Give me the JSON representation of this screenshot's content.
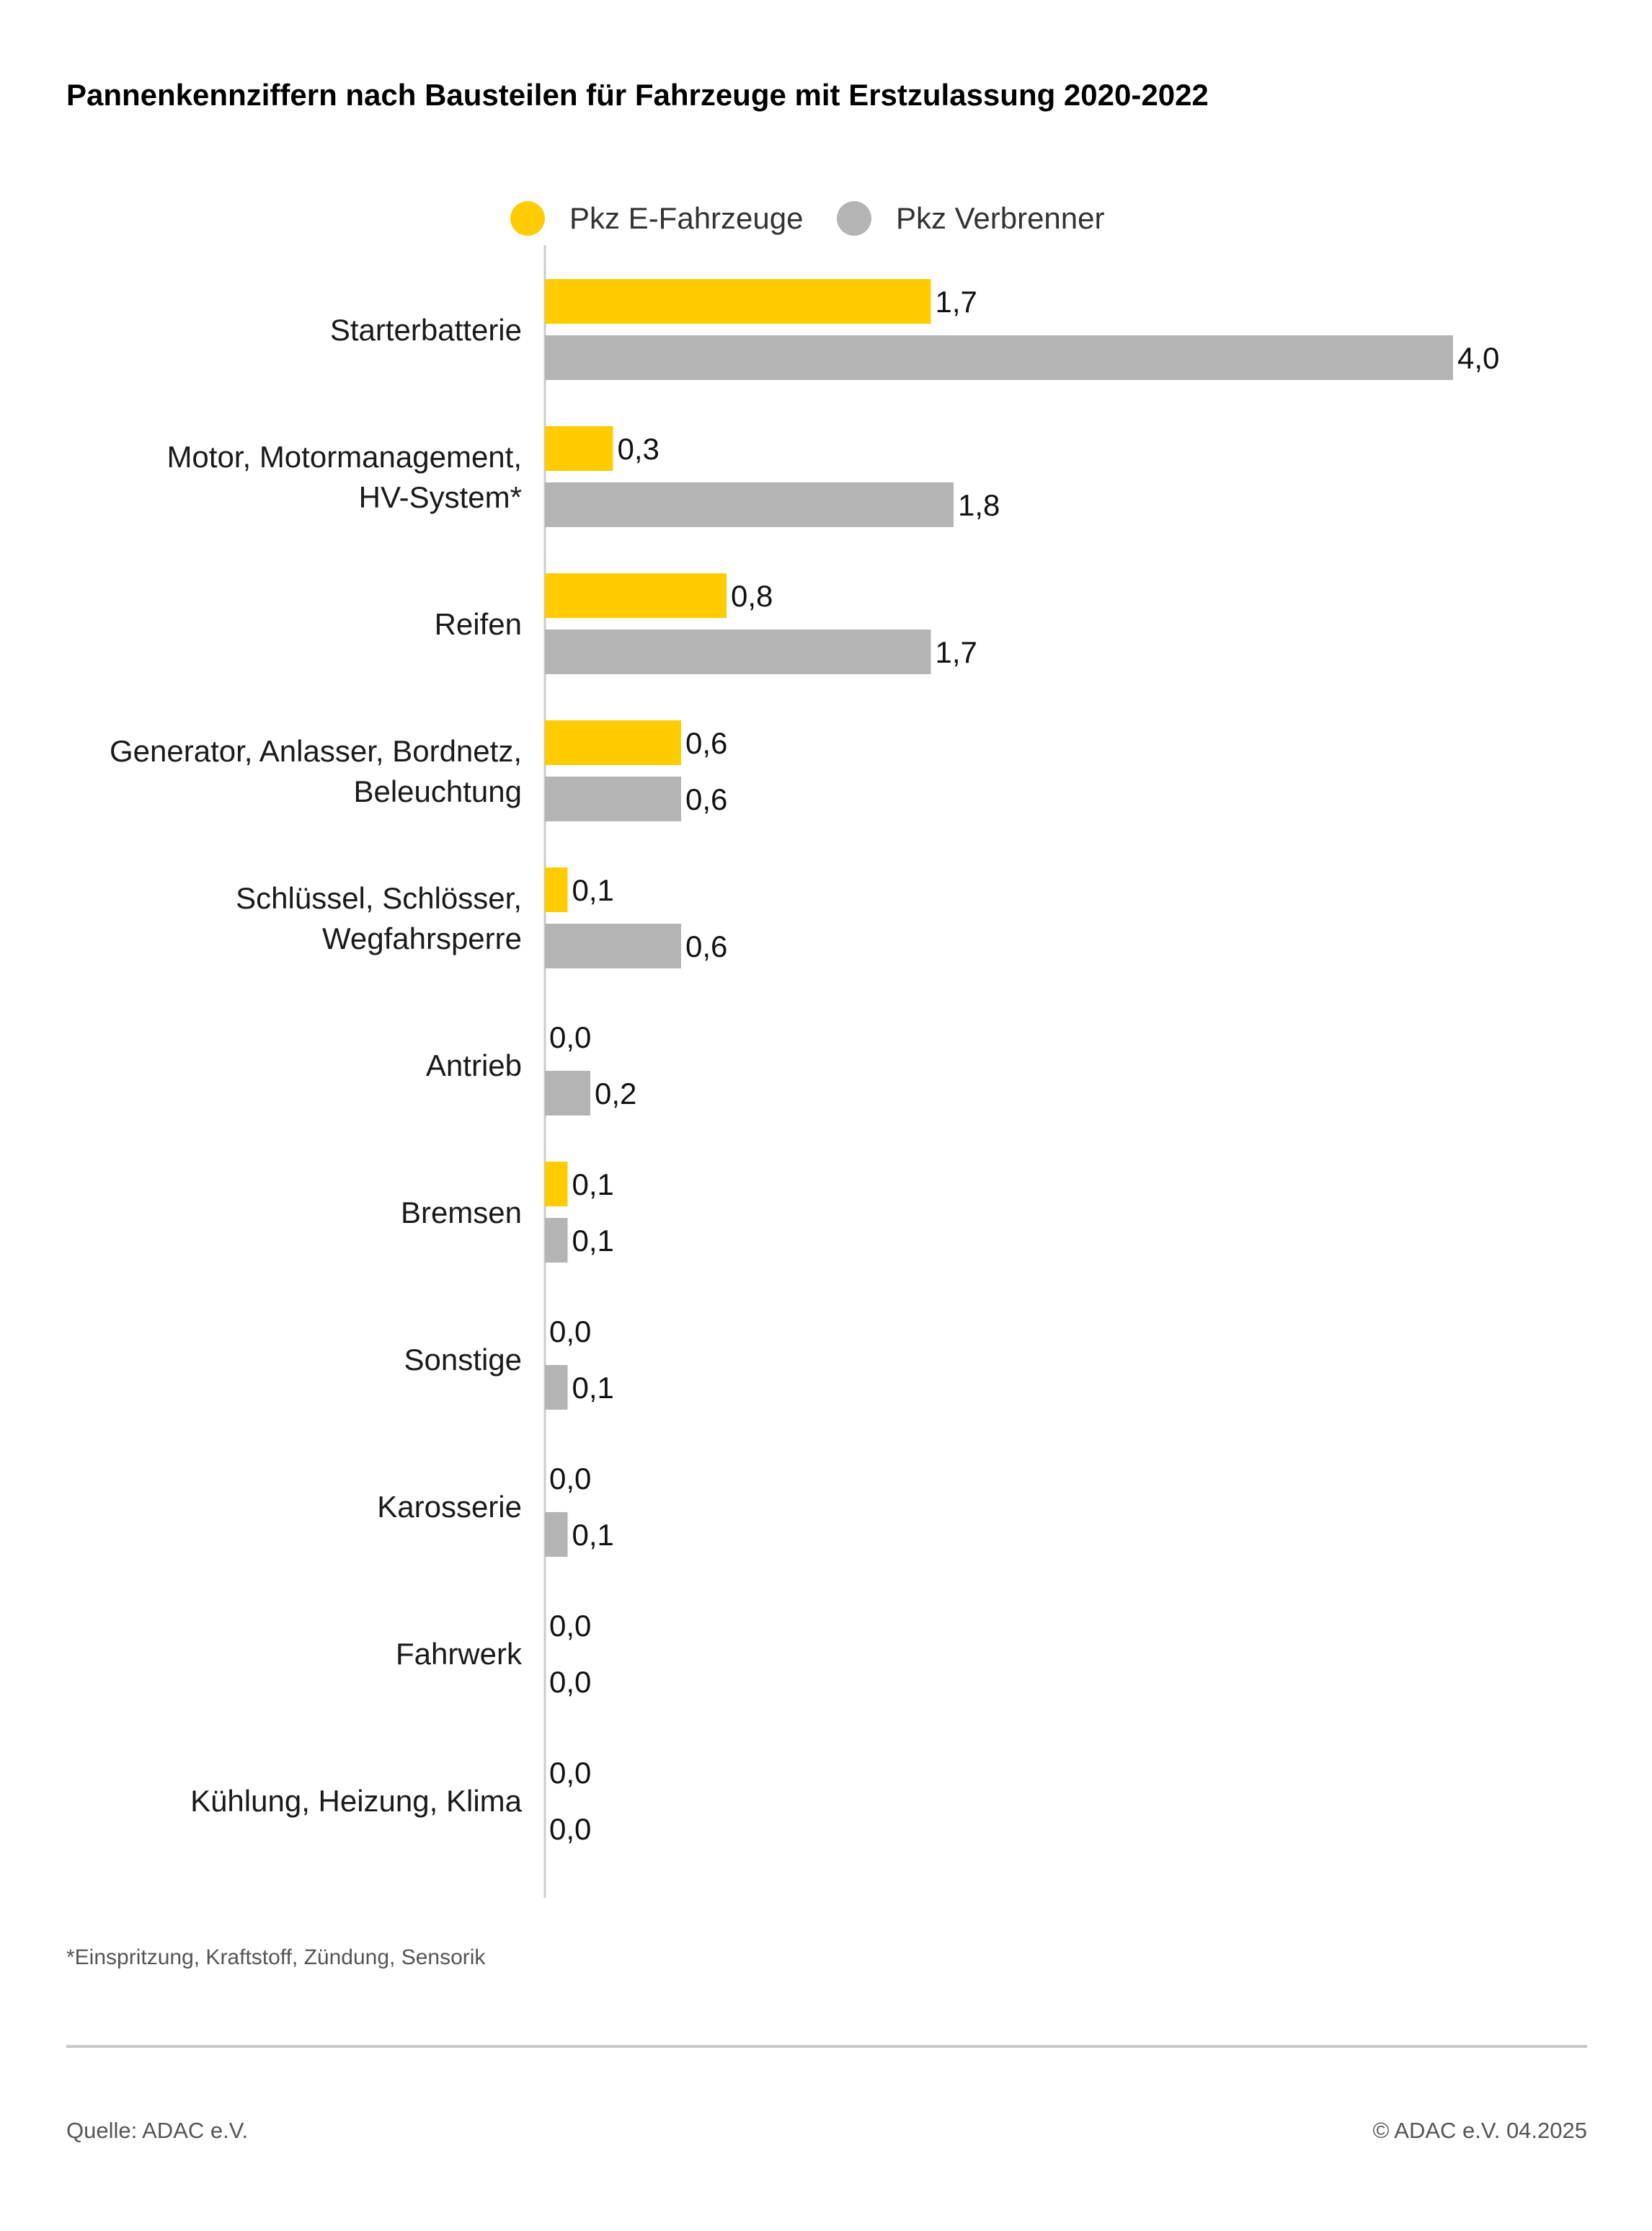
{
  "title": "Pannenkennziffern nach Bausteilen für Fahrzeuge mit Erstzulassung 2020-2022",
  "chart_data": {
    "type": "bar",
    "orientation": "horizontal",
    "legend_position": "top",
    "grid": false,
    "xlim": [
      0,
      4.0
    ],
    "categories": [
      [
        "Starterbatterie"
      ],
      [
        "Motor, Motormanagement,",
        "HV-System*"
      ],
      [
        "Reifen"
      ],
      [
        "Generator, Anlasser, Bordnetz,",
        "Beleuchtung"
      ],
      [
        "Schlüssel, Schlösser,",
        "Wegfahrsperre"
      ],
      [
        "Antrieb"
      ],
      [
        "Bremsen"
      ],
      [
        "Sonstige"
      ],
      [
        "Karosserie"
      ],
      [
        "Fahrwerk"
      ],
      [
        "Kühlung, Heizung, Klima"
      ]
    ],
    "series": [
      {
        "name": "Pkz E-Fahrzeuge",
        "color": "#FFCC00",
        "values": [
          1.7,
          0.3,
          0.8,
          0.6,
          0.1,
          0.0,
          0.1,
          0.0,
          0.0,
          0.0,
          0.0
        ],
        "labels": [
          "1,7",
          "0,3",
          "0,8",
          "0,6",
          "0,1",
          "0,0",
          "0,1",
          "0,0",
          "0,0",
          "0,0",
          "0,0"
        ]
      },
      {
        "name": "Pkz Verbrenner",
        "color": "#B4B4B4",
        "values": [
          4.0,
          1.8,
          1.7,
          0.6,
          0.6,
          0.2,
          0.1,
          0.1,
          0.1,
          0.0,
          0.0
        ],
        "labels": [
          "4,0",
          "1,8",
          "1,7",
          "0,6",
          "0,6",
          "0,2",
          "0,1",
          "0,1",
          "0,1",
          "0,0",
          "0,0"
        ]
      }
    ]
  },
  "footnote": "*Einspritzung, Kraftstoff, Zündung, Sensorik",
  "source": "Quelle: ADAC e.V.",
  "copyright": "© ADAC e.V.  04.2025"
}
